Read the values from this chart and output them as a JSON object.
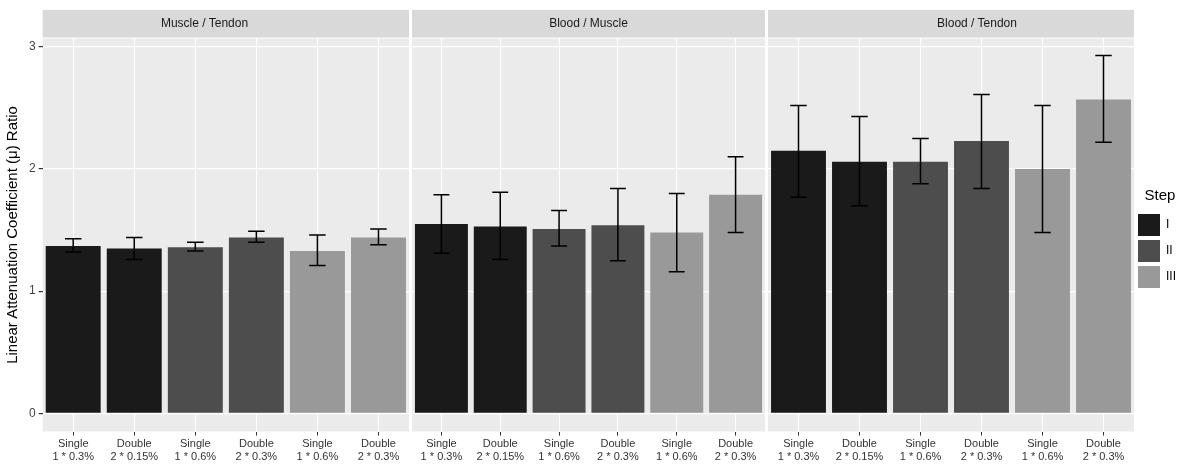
{
  "chart_data": [
    {
      "type": "bar",
      "title": "Muscle / Tendon",
      "ylabel": "Linear Attenuation Coefficient (μ) Ratio",
      "categories": [
        "Single\n1 * 0.3%",
        "Double\n2 * 0.15%",
        "Single\n1 * 0.6%",
        "Double\n2 * 0.3%",
        "Single\n1 * 0.6%",
        "Double\n2 * 0.3%"
      ],
      "series": [
        {
          "color": "#1a1a1a",
          "values": [
            1.37,
            1.35,
            null,
            null,
            null,
            null
          ],
          "errors": [
            [
              1.32,
              1.43
            ],
            [
              1.26,
              1.44
            ],
            null,
            null,
            null,
            null
          ]
        },
        {
          "color": "#4d4d4d",
          "values": [
            null,
            null,
            1.36,
            1.44,
            null,
            null
          ],
          "errors": [
            null,
            null,
            [
              1.33,
              1.4
            ],
            [
              1.4,
              1.49
            ],
            null,
            null
          ]
        },
        {
          "color": "#999999",
          "values": [
            null,
            null,
            null,
            null,
            1.33,
            1.44
          ],
          "errors": [
            null,
            null,
            null,
            null,
            [
              1.21,
              1.46
            ],
            [
              1.38,
              1.51
            ]
          ]
        }
      ],
      "ylim": [
        -0.15,
        3.07
      ],
      "yticks": [
        0,
        1,
        2,
        3
      ],
      "grid": true,
      "legend": false
    },
    {
      "type": "bar",
      "title": "Blood / Muscle",
      "categories": [
        "Single\n1 * 0.3%",
        "Double\n2 * 0.15%",
        "Single\n1 * 0.6%",
        "Double\n2 * 0.3%",
        "Single\n1 * 0.6%",
        "Double\n2 * 0.3%"
      ],
      "series": [
        {
          "color": "#1a1a1a",
          "values": [
            1.55,
            1.53,
            null,
            null,
            null,
            null
          ],
          "errors": [
            [
              1.31,
              1.79
            ],
            [
              1.26,
              1.81
            ],
            null,
            null,
            null,
            null
          ]
        },
        {
          "color": "#4d4d4d",
          "values": [
            null,
            null,
            1.51,
            1.54,
            null,
            null
          ],
          "errors": [
            null,
            null,
            [
              1.37,
              1.66
            ],
            [
              1.25,
              1.84
            ],
            null,
            null
          ]
        },
        {
          "color": "#999999",
          "values": [
            null,
            null,
            null,
            null,
            1.48,
            1.79
          ],
          "errors": [
            null,
            null,
            null,
            null,
            [
              1.16,
              1.8
            ],
            [
              1.48,
              2.1
            ]
          ]
        }
      ],
      "ylim": [
        -0.15,
        3.07
      ],
      "yticks": [
        0,
        1,
        2,
        3
      ],
      "grid": true,
      "legend": false,
      "tick_labels": "x"
    },
    {
      "type": "bar",
      "title": "Blood / Tendon",
      "legend_title": "Step",
      "categories": [
        "Single\n1 * 0.3%",
        "Double\n2 * 0.15%",
        "Single\n1 * 0.6%",
        "Double\n2 * 0.3%",
        "Single\n1 * 0.6%",
        "Double\n2 * 0.3%"
      ],
      "series": [
        {
          "name": "I",
          "color": "#1a1a1a",
          "values": [
            2.15,
            2.06,
            null,
            null,
            null,
            null
          ],
          "errors": [
            [
              1.77,
              2.52
            ],
            [
              1.7,
              2.43
            ],
            null,
            null,
            null,
            null
          ]
        },
        {
          "name": "II",
          "color": "#4d4d4d",
          "values": [
            null,
            null,
            2.06,
            2.23,
            null,
            null
          ],
          "errors": [
            null,
            null,
            [
              1.88,
              2.25
            ],
            [
              1.84,
              2.61
            ],
            null,
            null
          ]
        },
        {
          "name": "III",
          "color": "#999999",
          "values": [
            null,
            null,
            null,
            null,
            2.0,
            2.57
          ],
          "errors": [
            null,
            null,
            null,
            null,
            [
              1.48,
              2.52
            ],
            [
              2.22,
              2.93
            ]
          ]
        }
      ],
      "ylim": [
        -0.15,
        3.07
      ],
      "yticks": [
        0,
        1,
        2,
        3
      ],
      "grid": true,
      "legend": "right",
      "tick_labels": "x"
    }
  ]
}
